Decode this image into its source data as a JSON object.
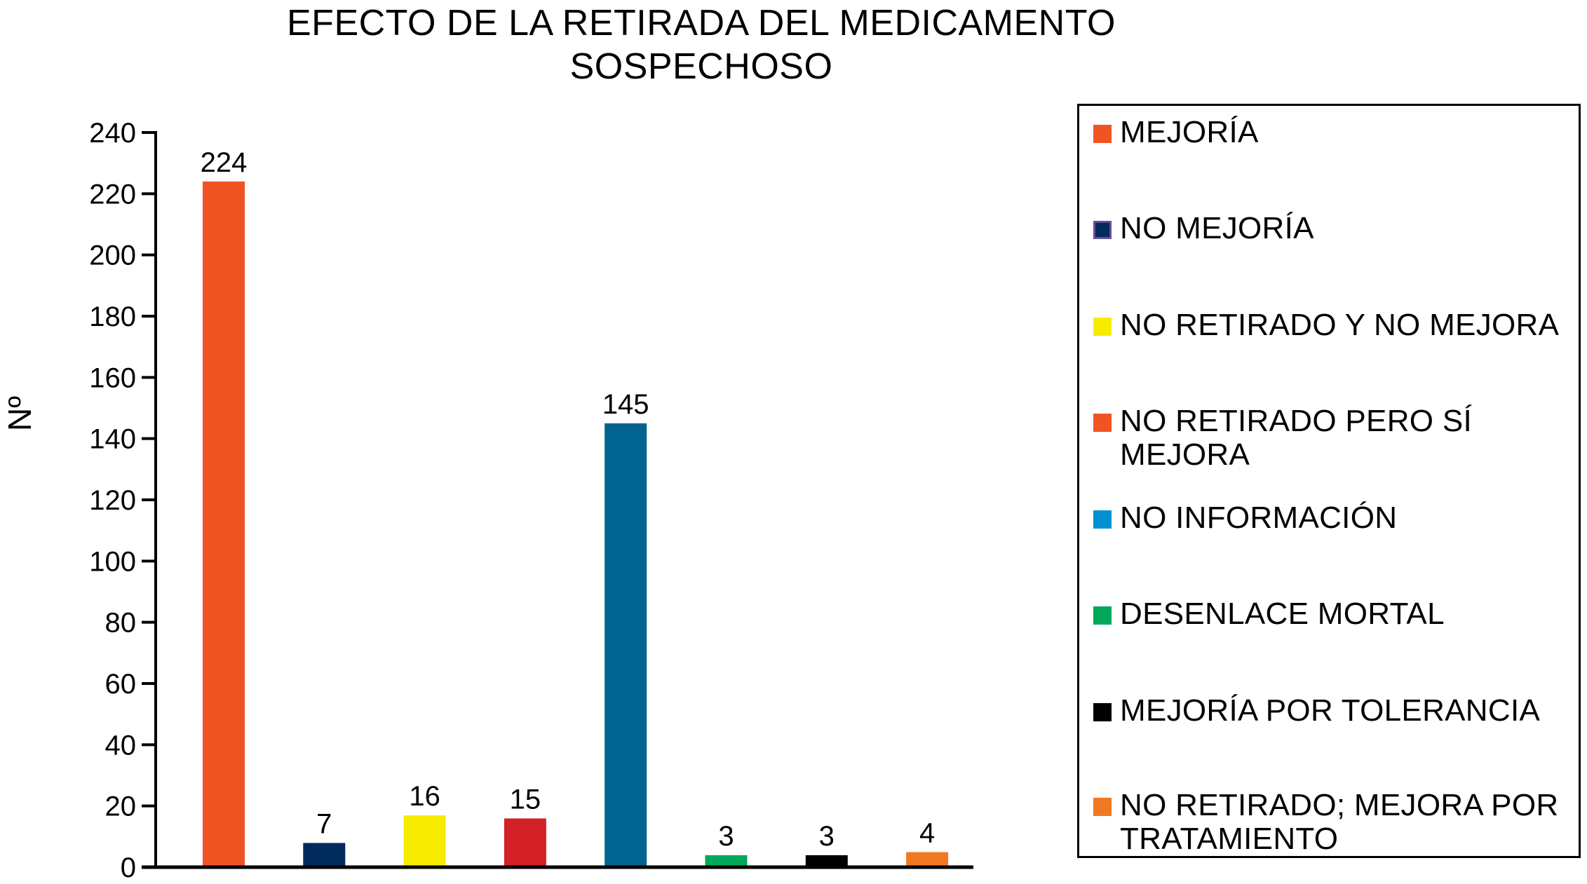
{
  "chart_data": {
    "type": "bar",
    "title_lines": [
      "EFECTO DE LA RETIRADA DEL MEDICAMENTO",
      "SOSPECHOSO"
    ],
    "ylabel": "Nº",
    "xlabel": "",
    "ylim": [
      0,
      240
    ],
    "yticks": [
      0,
      20,
      40,
      60,
      80,
      100,
      120,
      140,
      160,
      180,
      200,
      220,
      240
    ],
    "grid": false,
    "legend_position": "right",
    "categories": [
      "MEJORÍA",
      "NO MEJORÍA",
      "NO RETIRADO Y NO MEJORA",
      "NO RETIRADO PERO SÍ MEJORA",
      "NO INFORMACIÓN",
      "DESENLACE MORTAL",
      "MEJORÍA POR TOLERANCIA",
      "NO RETIRADO; MEJORA POR TRATAMIENTO"
    ],
    "values": [
      224,
      7,
      16,
      15,
      145,
      3,
      3,
      4
    ],
    "bar_colors": [
      "#f05423",
      "#002b5c",
      "#f7ec00",
      "#d42027",
      "#006390",
      "#00a859",
      "#000000",
      "#f07a23"
    ],
    "legend": [
      {
        "label": "MEJORÍA",
        "color": "#f05423"
      },
      {
        "label": "NO MEJORÍA",
        "color": "#002b5c",
        "border": "#6a4c9c"
      },
      {
        "label": "NO RETIRADO Y NO MEJORA",
        "color": "#f7ec00"
      },
      {
        "label": "NO RETIRADO PERO SÍ MEJORA",
        "color": "#f05423"
      },
      {
        "label": "NO INFORMACIÓN",
        "color": "#0091d0"
      },
      {
        "label": "DESENLACE MORTAL",
        "color": "#00a859"
      },
      {
        "label": "MEJORÍA POR TOLERANCIA",
        "color": "#000000"
      },
      {
        "label": "NO RETIRADO; MEJORA POR TRATAMIENTO",
        "color": "#f07a23"
      }
    ]
  }
}
